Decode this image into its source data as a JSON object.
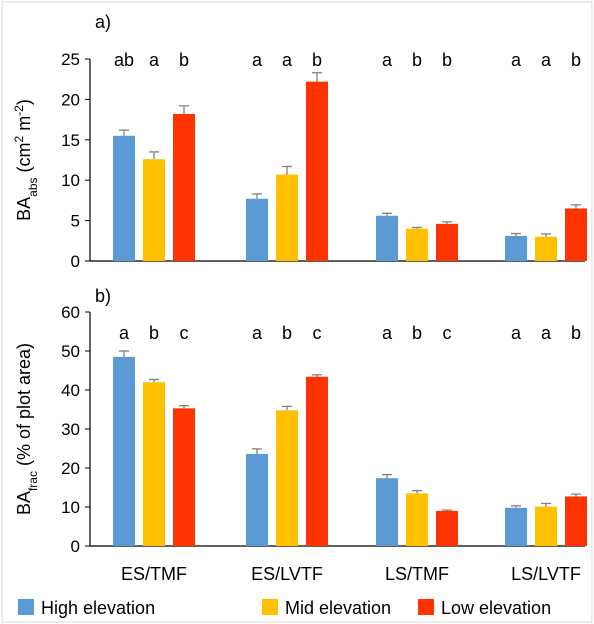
{
  "chart_data": {
    "type": "bar",
    "categories": [
      "ES/TMF",
      "ES/LVTF",
      "LS/TMF",
      "LS/LVTF"
    ],
    "legend": [
      {
        "name": "High elevation",
        "color": "#5B9BD5"
      },
      {
        "name": "Mid elevation",
        "color": "#FFC000"
      },
      {
        "name": "Low elevation",
        "color": "#FF3300"
      }
    ],
    "legend_position": "bottom",
    "error_bar_color": "#808080",
    "panels": [
      {
        "label": "a)",
        "ylabel": {
          "main": "BA",
          "sub": "abs",
          "rest": " (cm",
          "sup1": "2",
          "mid": " m",
          "sup2": "-2",
          "end": ")"
        },
        "ylim": [
          0,
          25
        ],
        "yticks": [
          0,
          5,
          10,
          15,
          20,
          25
        ],
        "series": [
          {
            "name": "High elevation",
            "values": [
              15.5,
              7.7,
              5.6,
              3.1
            ],
            "errors": [
              0.7,
              0.6,
              0.3,
              0.3
            ]
          },
          {
            "name": "Mid elevation",
            "values": [
              12.6,
              10.7,
              4.0,
              3.0
            ],
            "errors": [
              0.9,
              1.0,
              0.15,
              0.35
            ]
          },
          {
            "name": "Low elevation",
            "values": [
              18.2,
              22.2,
              4.6,
              6.5
            ],
            "errors": [
              1.0,
              1.1,
              0.25,
              0.45
            ]
          }
        ],
        "letters": [
          [
            "ab",
            "a",
            "b"
          ],
          [
            "a",
            "a",
            "b"
          ],
          [
            "a",
            "b",
            "b"
          ],
          [
            "a",
            "a",
            "b"
          ]
        ]
      },
      {
        "label": "b)",
        "ylabel": {
          "main": "BA",
          "sub": "frac",
          "rest": " (% of plot area)"
        },
        "ylim": [
          0,
          60
        ],
        "yticks": [
          0,
          10,
          20,
          30,
          40,
          50,
          60
        ],
        "series": [
          {
            "name": "High elevation",
            "values": [
              48.5,
              23.6,
              17.4,
              9.8
            ],
            "errors": [
              1.5,
              1.3,
              0.9,
              0.5
            ]
          },
          {
            "name": "Mid elevation",
            "values": [
              42.0,
              34.8,
              13.5,
              10.1
            ],
            "errors": [
              0.7,
              1.0,
              0.7,
              0.8
            ]
          },
          {
            "name": "Low elevation",
            "values": [
              35.3,
              43.4,
              9.0,
              12.7
            ],
            "errors": [
              0.7,
              0.5,
              0.2,
              0.6
            ]
          }
        ],
        "letters": [
          [
            "a",
            "b",
            "c"
          ],
          [
            "a",
            "b",
            "c"
          ],
          [
            "a",
            "b",
            "c"
          ],
          [
            "a",
            "a",
            "b"
          ]
        ]
      }
    ],
    "grid": false
  }
}
